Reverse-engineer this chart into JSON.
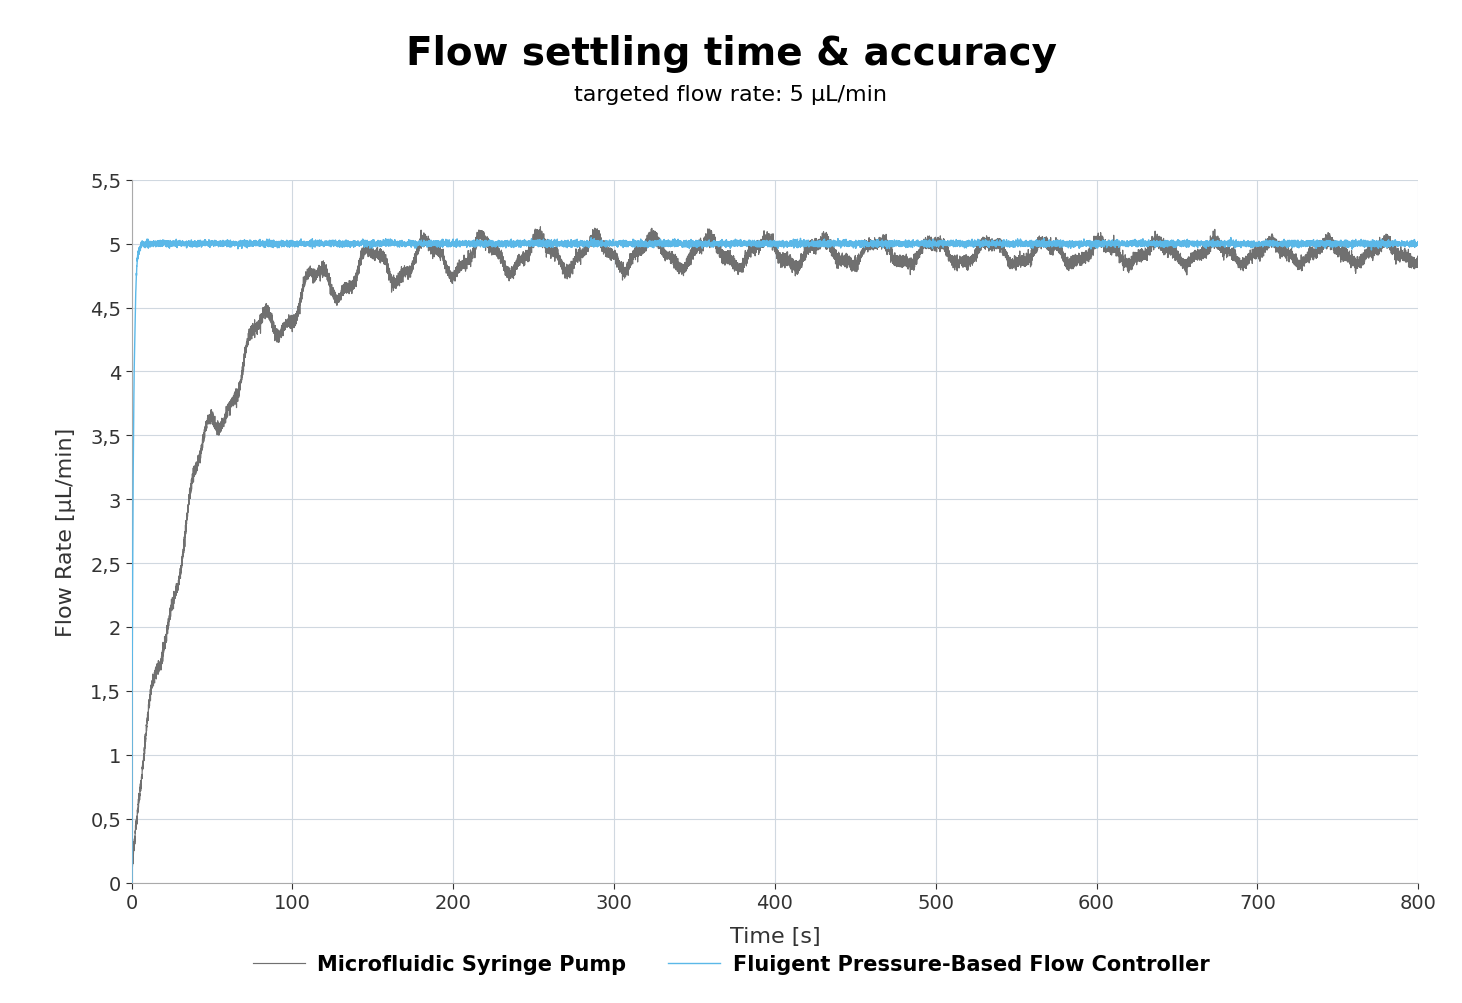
{
  "title": "Flow settling time & accuracy",
  "subtitle": "targeted flow rate: 5 μL/min",
  "xlabel": "Time [s]",
  "ylabel": "Flow Rate [μL/min]",
  "xlim": [
    0,
    800
  ],
  "ylim": [
    0,
    5.5
  ],
  "yticks": [
    0,
    0.5,
    1.0,
    1.5,
    2.0,
    2.5,
    3.0,
    3.5,
    4.0,
    4.5,
    5.0,
    5.5
  ],
  "ytick_labels": [
    "0",
    "0,5",
    "1",
    "1,5",
    "2",
    "2,5",
    "3",
    "3,5",
    "4",
    "4,5",
    "5",
    "5,5"
  ],
  "xticks": [
    0,
    100,
    200,
    300,
    400,
    500,
    600,
    700,
    800
  ],
  "syringe_color": "#707070",
  "pressure_color": "#5bb8e8",
  "legend_syringe": "Microfluidic Syringe Pump",
  "legend_pressure": "Fluigent Pressure-Based Flow Controller",
  "title_fontsize": 28,
  "subtitle_fontsize": 16,
  "label_fontsize": 16,
  "tick_fontsize": 14,
  "legend_fontsize": 15,
  "background_color": "#ffffff",
  "grid_color": "#d0d8e0",
  "target_flow": 5.0
}
